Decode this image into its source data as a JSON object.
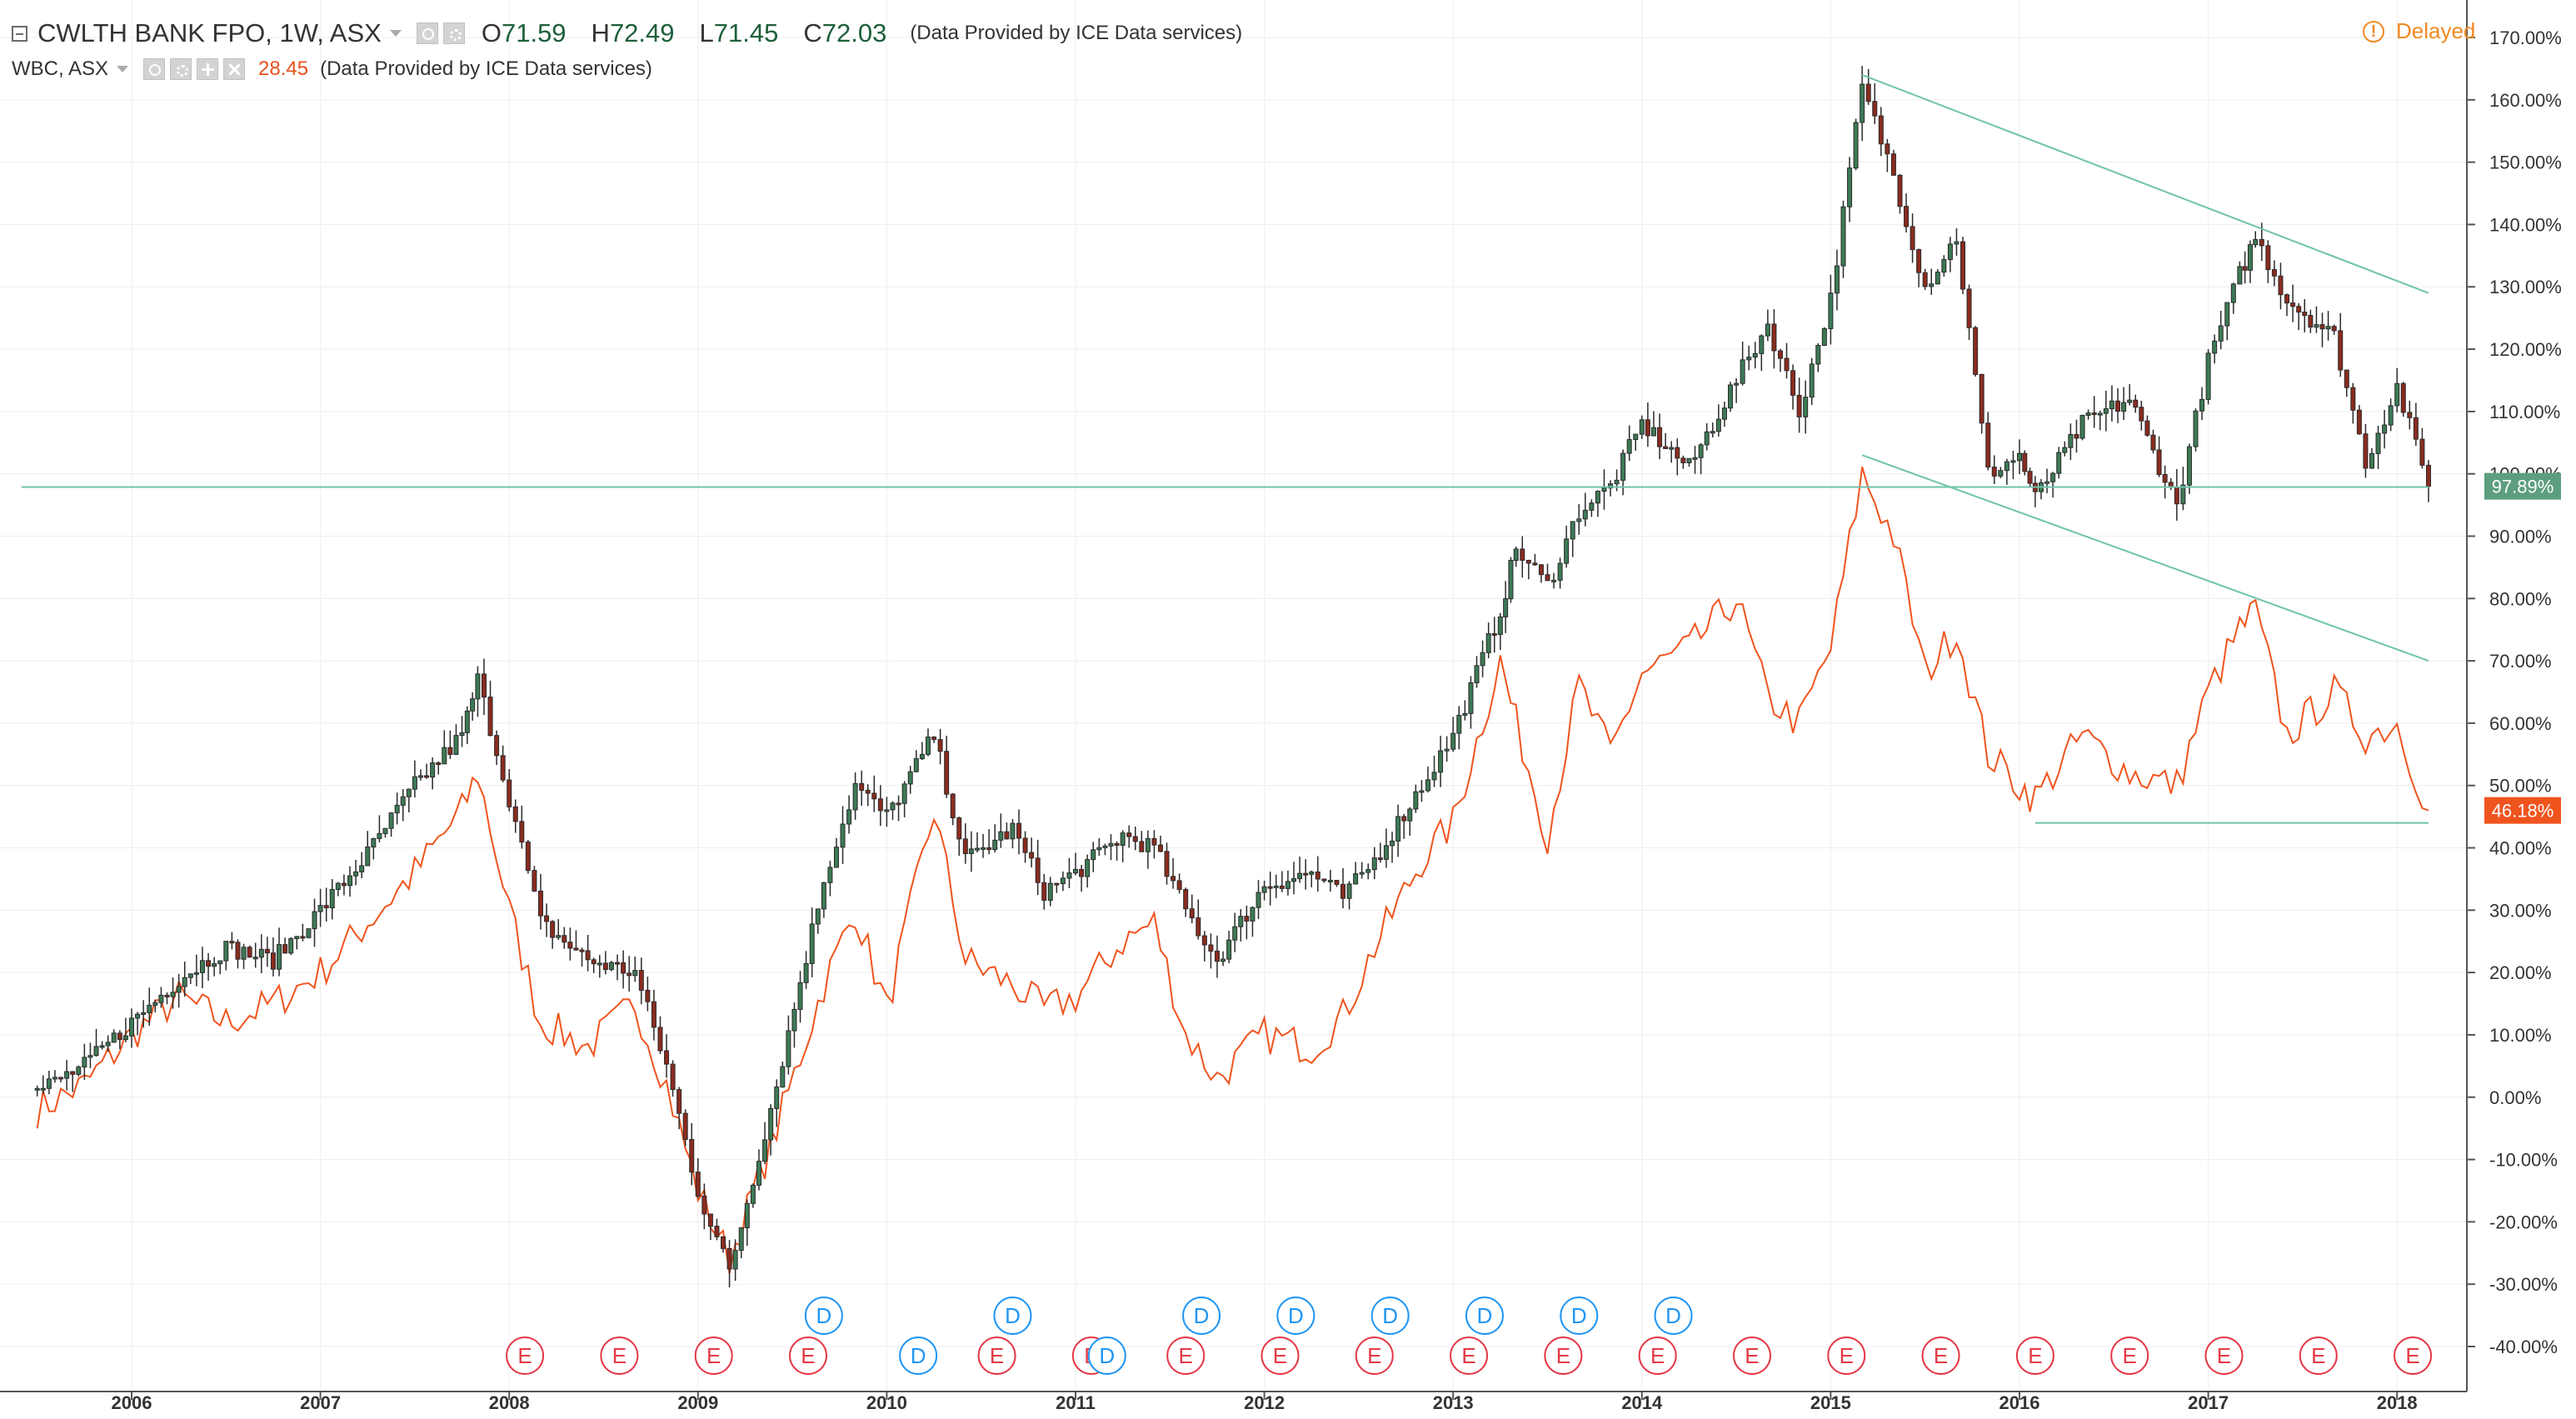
{
  "header": {
    "main_symbol": "CWLTH BANK FPO, 1W, ASX",
    "ohlc": [
      {
        "label": "O",
        "value": "71.59"
      },
      {
        "label": "H",
        "value": "72.49"
      },
      {
        "label": "L",
        "value": "71.45"
      },
      {
        "label": "C",
        "value": "72.03"
      }
    ],
    "provider": "(Data Provided by ICE Data services)",
    "compare_symbol": "WBC, ASX",
    "compare_value": "28.45",
    "compare_provider": "(Data Provided by ICE Data services)",
    "status": "Delayed"
  },
  "colors": {
    "up_candle": "#3d7a55",
    "down_candle": "#8b2b1f",
    "compare_line": "#f0541e",
    "trend_line": "#6fc3ab",
    "axis_text": "#333333",
    "grid": "#eeeeee",
    "dividend_marker": "#2196f3",
    "earnings_marker": "#e53946",
    "delayed": "#f08a24"
  },
  "chart_data": {
    "type": "line",
    "subtype": "candlestick_with_comparison",
    "title": "CWLTH BANK FPO, 1W, ASX",
    "y_axis": {
      "unit": "percent",
      "range": [
        -40,
        170
      ],
      "ticks": [
        "170.00%",
        "160.00%",
        "150.00%",
        "140.00%",
        "130.00%",
        "120.00%",
        "110.00%",
        "100.00%",
        "90.00%",
        "80.00%",
        "70.00%",
        "60.00%",
        "50.00%",
        "40.00%",
        "30.00%",
        "20.00%",
        "10.00%",
        "0.00%",
        "-10.00%",
        "-20.00%",
        "-30.00%",
        "-40.00%"
      ],
      "side": "right"
    },
    "x_axis": {
      "range": [
        "2005-06-01",
        "2018-04-01"
      ],
      "ticks": [
        "2006",
        "2007",
        "2008",
        "2009",
        "2010",
        "2011",
        "2012",
        "2013",
        "2014",
        "2015",
        "2016",
        "2017",
        "2018"
      ]
    },
    "grid": true,
    "series": [
      {
        "name": "CWLTH BANK FPO",
        "style": "candlestick",
        "x": [
          "2005-07",
          "2005-10",
          "2006-01",
          "2006-04",
          "2006-07",
          "2006-10",
          "2007-01",
          "2007-04",
          "2007-07",
          "2007-10",
          "2007-11",
          "2008-01",
          "2008-03",
          "2008-06",
          "2008-09",
          "2008-11",
          "2009-01",
          "2009-03",
          "2009-06",
          "2009-09",
          "2009-11",
          "2010-01",
          "2010-04",
          "2010-06",
          "2010-09",
          "2010-11",
          "2011-01",
          "2011-04",
          "2011-06",
          "2011-08",
          "2011-10",
          "2012-01",
          "2012-04",
          "2012-06",
          "2012-08",
          "2012-11",
          "2013-01",
          "2013-04",
          "2013-05",
          "2013-07",
          "2013-09",
          "2013-11",
          "2014-01",
          "2014-04",
          "2014-07",
          "2014-09",
          "2014-11",
          "2015-01",
          "2015-03",
          "2015-05",
          "2015-07",
          "2015-09",
          "2015-11",
          "2016-01",
          "2016-02",
          "2016-05",
          "2016-08",
          "2016-11",
          "2017-01",
          "2017-03",
          "2017-04",
          "2017-06",
          "2017-09",
          "2017-11",
          "2018-01",
          "2018-03"
        ],
        "values": [
          1,
          5,
          12,
          19,
          24,
          22,
          30,
          39,
          50,
          58,
          67,
          48,
          28,
          22,
          20,
          5,
          -15,
          -28,
          2,
          35,
          50,
          45,
          58,
          38,
          43,
          33,
          36,
          42,
          40,
          30,
          22,
          34,
          36,
          32,
          38,
          50,
          58,
          78,
          88,
          82,
          94,
          98,
          108,
          101,
          115,
          124,
          110,
          128,
          162,
          148,
          130,
          138,
          100,
          103,
          96,
          108,
          112,
          95,
          118,
          132,
          138,
          128,
          122,
          102,
          114,
          98
        ],
        "last_value_label": "97.89%"
      },
      {
        "name": "WBC",
        "style": "line",
        "x": [
          "2005-07",
          "2005-10",
          "2006-01",
          "2006-04",
          "2006-07",
          "2006-10",
          "2007-01",
          "2007-04",
          "2007-07",
          "2007-10",
          "2007-11",
          "2008-01",
          "2008-03",
          "2008-06",
          "2008-09",
          "2008-11",
          "2009-01",
          "2009-03",
          "2009-06",
          "2009-09",
          "2009-11",
          "2010-01",
          "2010-04",
          "2010-06",
          "2010-09",
          "2010-11",
          "2011-01",
          "2011-04",
          "2011-06",
          "2011-08",
          "2011-10",
          "2012-01",
          "2012-04",
          "2012-06",
          "2012-08",
          "2012-11",
          "2013-01",
          "2013-04",
          "2013-05",
          "2013-07",
          "2013-09",
          "2013-11",
          "2014-01",
          "2014-04",
          "2014-07",
          "2014-09",
          "2014-11",
          "2015-01",
          "2015-03",
          "2015-05",
          "2015-07",
          "2015-09",
          "2015-11",
          "2016-01",
          "2016-02",
          "2016-05",
          "2016-08",
          "2016-11",
          "2017-01",
          "2017-03",
          "2017-04",
          "2017-06",
          "2017-09",
          "2017-11",
          "2018-01",
          "2018-03"
        ],
        "values": [
          -2,
          2,
          10,
          16,
          12,
          15,
          20,
          28,
          36,
          46,
          52,
          30,
          12,
          8,
          15,
          2,
          -15,
          -26,
          -5,
          18,
          30,
          14,
          46,
          22,
          18,
          14,
          16,
          25,
          28,
          10,
          3,
          10,
          8,
          13,
          24,
          38,
          44,
          70,
          60,
          42,
          66,
          55,
          68,
          72,
          80,
          64,
          60,
          72,
          100,
          90,
          68,
          75,
          55,
          50,
          48,
          58,
          52,
          50,
          65,
          75,
          78,
          58,
          65,
          58,
          60,
          46
        ],
        "last_value_label": "46.18%"
      }
    ],
    "trendlines": [
      {
        "from": {
          "x": "2015-03",
          "y": 164
        },
        "to": {
          "x": "2018-03",
          "y": 129
        }
      },
      {
        "from": {
          "x": "2015-03",
          "y": 103
        },
        "to": {
          "x": "2018-03",
          "y": 70
        }
      },
      {
        "from": {
          "x": "2016-02",
          "y": 44
        },
        "to": {
          "x": "2018-03",
          "y": 44
        }
      },
      {
        "from": {
          "x": "2005-06",
          "y": 97.89
        },
        "to": {
          "x": "2018-03",
          "y": 97.89
        }
      }
    ],
    "events": {
      "dividends": {
        "label": "D",
        "upper_row": [
          "2009-09",
          "2010-09",
          "2011-09",
          "2012-03",
          "2012-09",
          "2013-03",
          "2013-09",
          "2014-03"
        ],
        "lower_row": [
          "2010-03",
          "2011-03"
        ]
      },
      "earnings": {
        "label": "E",
        "row": [
          "2008-02",
          "2008-08",
          "2009-02",
          "2009-08",
          "2010-08",
          "2011-02",
          "2011-08",
          "2012-02",
          "2012-08",
          "2013-02",
          "2013-08",
          "2014-02",
          "2014-08",
          "2015-02",
          "2015-08",
          "2016-02",
          "2016-08",
          "2017-02",
          "2017-08",
          "2018-02"
        ]
      }
    }
  }
}
